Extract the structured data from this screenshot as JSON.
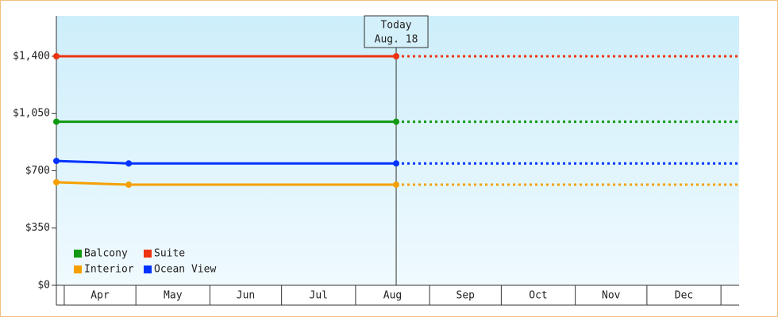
{
  "chart_data": {
    "type": "line",
    "categories": [
      "Apr",
      "May",
      "Jun",
      "Jul",
      "Aug",
      "Sep",
      "Oct",
      "Nov",
      "Dec"
    ],
    "month_bounds": [
      0,
      30,
      61,
      91,
      122,
      153,
      183,
      214,
      244,
      275
    ],
    "xlim": [
      -3.3,
      282.6
    ],
    "ylim": [
      0,
      1647
    ],
    "yticks": [
      {
        "value": 0,
        "label": "$0"
      },
      {
        "value": 350,
        "label": "$350"
      },
      {
        "value": 700,
        "label": "$700"
      },
      {
        "value": 1050,
        "label": "$1,050"
      },
      {
        "value": 1400,
        "label": "$1,400"
      }
    ],
    "today": {
      "x": 139,
      "lines": [
        "Today",
        "Aug. 18"
      ]
    },
    "series": [
      {
        "name": "Balcony",
        "color": "#119911",
        "x": [
          -3.3,
          139
        ],
        "values": [
          1000,
          1000
        ]
      },
      {
        "name": "Suite",
        "color": "#ee3311",
        "x": [
          -3.3,
          139
        ],
        "values": [
          1400,
          1400
        ]
      },
      {
        "name": "Interior",
        "color": "#f5a000",
        "x": [
          -3.3,
          27,
          139
        ],
        "values": [
          630,
          615,
          615
        ]
      },
      {
        "name": "Ocean View",
        "color": "#0033ff",
        "x": [
          -3.3,
          27,
          139
        ],
        "values": [
          760,
          745,
          745
        ]
      }
    ],
    "legend": "lower-left"
  }
}
